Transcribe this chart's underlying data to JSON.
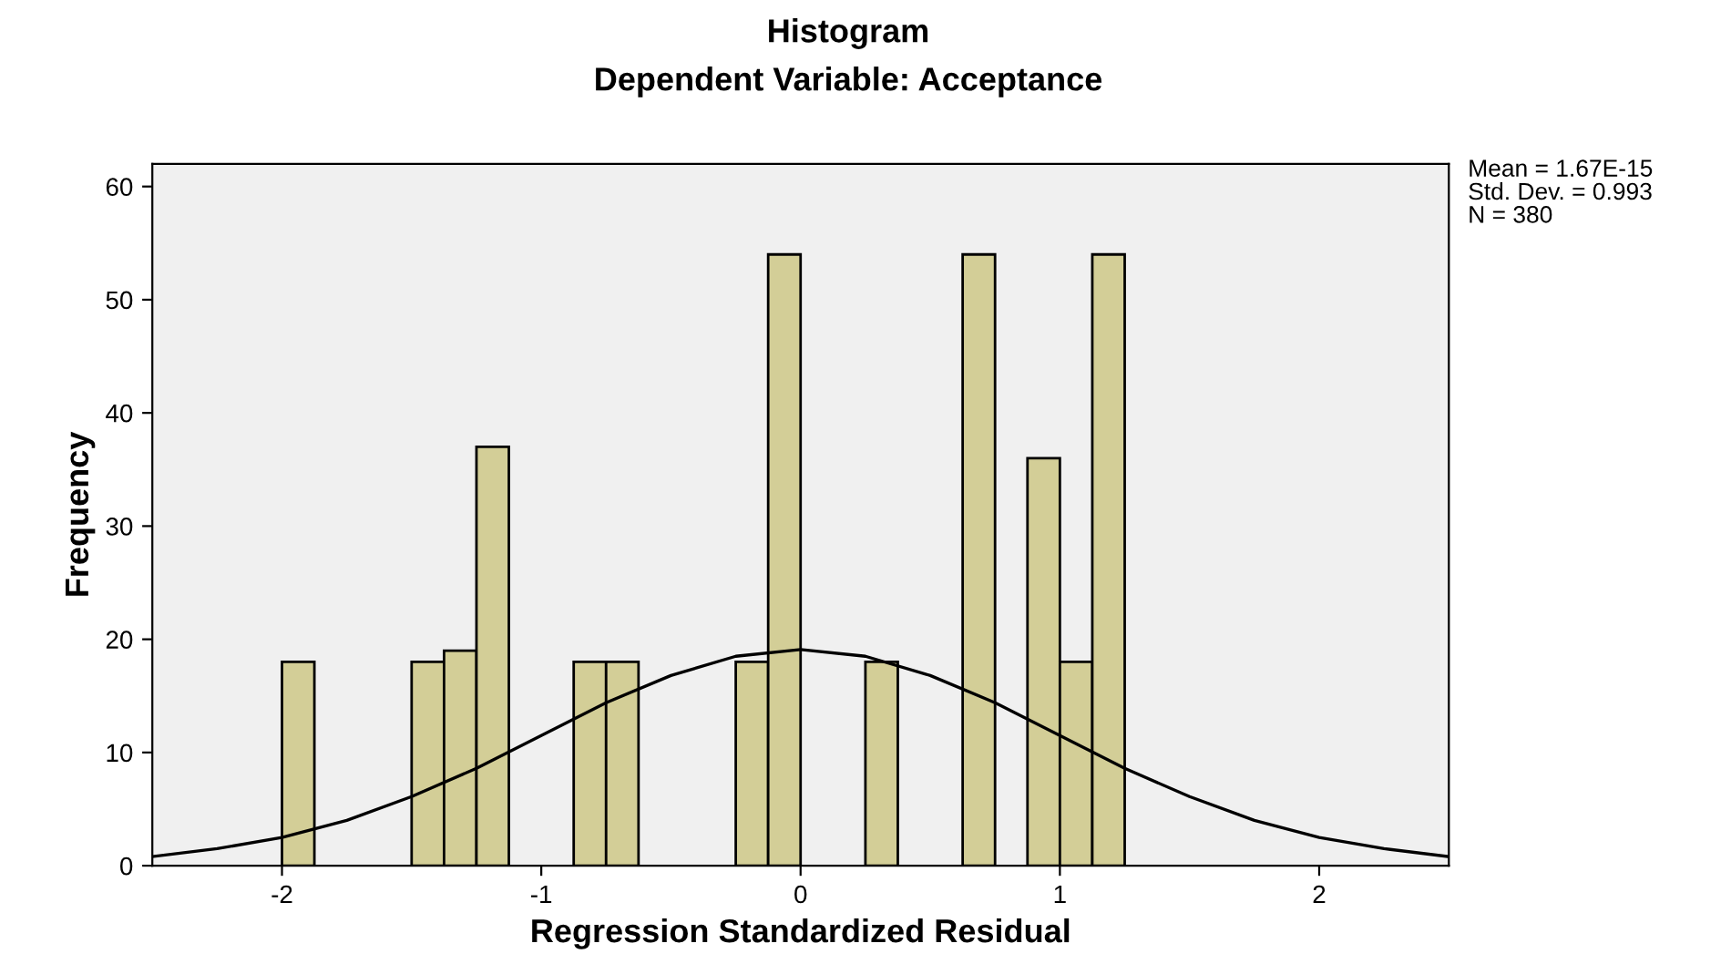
{
  "chart_data": {
    "type": "histogram",
    "title": "Histogram",
    "subtitle": "Dependent Variable: Acceptance",
    "xlabel": "Regression Standardized Residual",
    "ylabel": "Frequency",
    "bins": [
      -2,
      -1.875,
      -1.75,
      -1.625,
      -1.5,
      -1.375,
      -1.25,
      -1.125,
      -1,
      -0.875,
      -0.75,
      -0.625,
      -0.5,
      -0.375,
      -0.25,
      -0.125,
      0,
      0.125,
      0.25,
      0.375,
      0.5,
      0.625,
      0.75,
      0.875,
      1,
      1.125,
      1.25
    ],
    "values": [
      18,
      0,
      0,
      0,
      18,
      19,
      37,
      0,
      0,
      18,
      18,
      0,
      0,
      0,
      18,
      54,
      0,
      0,
      18,
      0,
      0,
      54,
      0,
      36,
      18,
      54
    ],
    "color": "#d3ce97",
    "series": [
      {
        "type": "line",
        "color": "#000000",
        "x": [
          -2.5,
          -2.25,
          -2,
          -1.75,
          -1.5,
          -1.25,
          -1,
          -0.75,
          -0.5,
          -0.25,
          0,
          0.25,
          0.5,
          0.75,
          1,
          1.25,
          1.5,
          1.75,
          2,
          2.25,
          2.5
        ],
        "values": [
          0.8,
          1.5,
          2.5,
          4.0,
          6.1,
          8.6,
          11.5,
          14.4,
          16.8,
          18.5,
          19.1,
          18.5,
          16.8,
          14.4,
          11.5,
          8.6,
          6.1,
          4.0,
          2.5,
          1.5,
          0.8
        ]
      }
    ],
    "xlim": [
      -2.5,
      2.5
    ],
    "xticks": [
      -2,
      -1,
      0,
      1,
      2
    ],
    "ylim": [
      0,
      62
    ],
    "yticks": [
      0,
      10,
      20,
      30,
      40,
      50,
      60
    ],
    "grid": false,
    "legend": false,
    "annotations": [
      "Mean = 1.67E-15",
      "Std. Dev. = 0.993",
      "N = 380"
    ]
  }
}
